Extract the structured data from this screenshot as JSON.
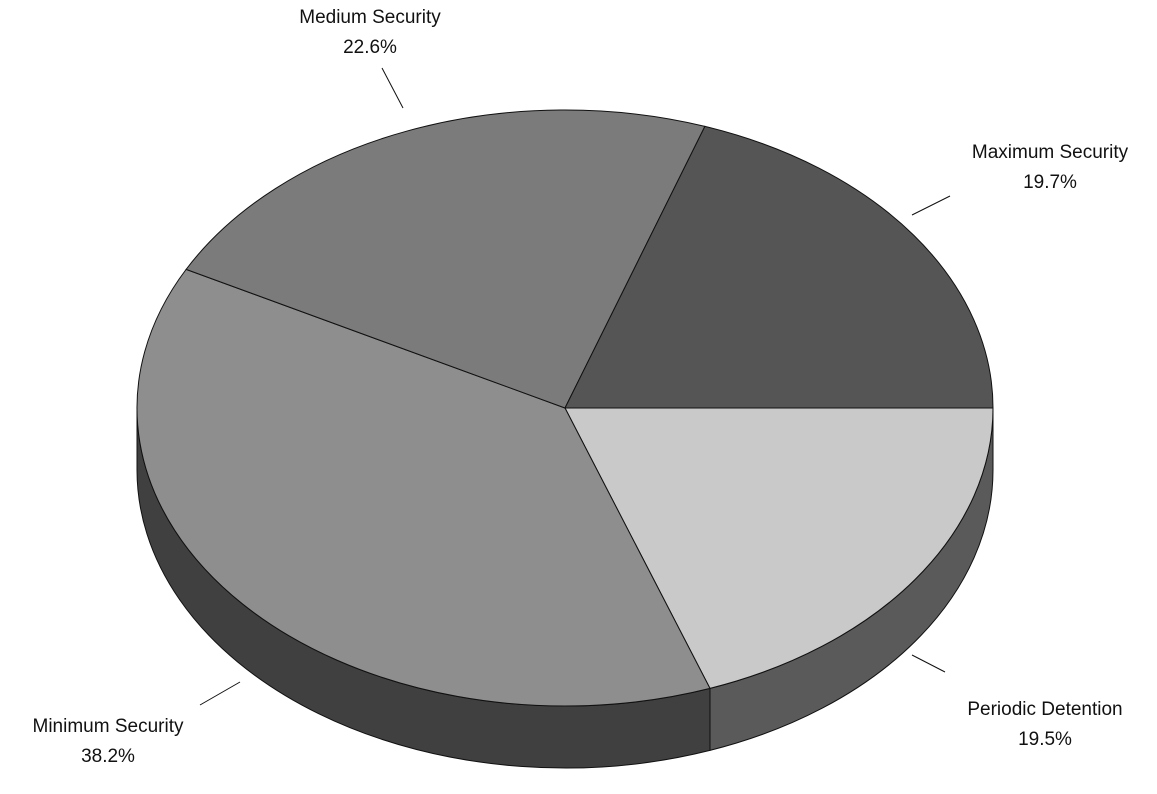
{
  "chart_data": {
    "type": "pie",
    "categories": [
      "Periodic Detention",
      "Minimum Security",
      "Medium Security",
      "Maximum Security"
    ],
    "values": [
      19.5,
      38.2,
      22.6,
      19.7
    ],
    "value_labels": [
      "19.5%",
      "38.2%",
      "22.6%",
      "19.7%"
    ],
    "colors": [
      "#c9c9c9",
      "#8e8e8e",
      "#7b7b7b",
      "#555555"
    ]
  }
}
